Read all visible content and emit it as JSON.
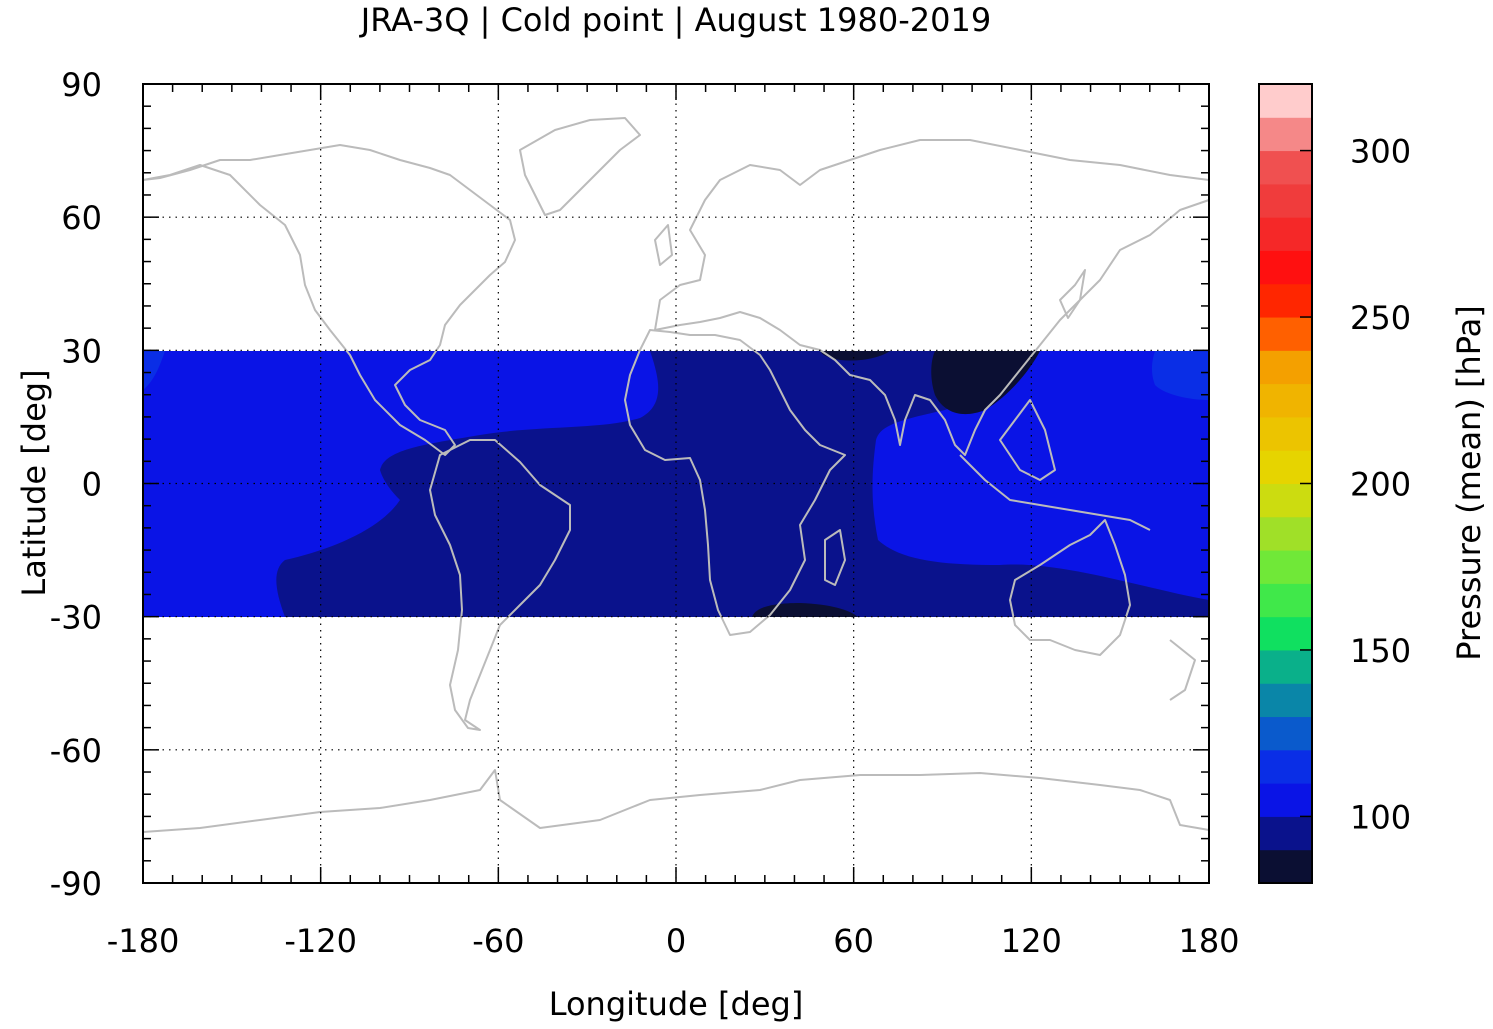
{
  "chart_data": {
    "type": "heatmap",
    "title": "JRA-3Q | Cold point | August 1980-2019",
    "xlabel": "Longitude [deg]",
    "ylabel": "Latitude [deg]",
    "xlim": [
      -180,
      180
    ],
    "ylim": [
      -90,
      90
    ],
    "x_ticks": [
      -180,
      -120,
      -60,
      0,
      60,
      120,
      180
    ],
    "y_ticks": [
      90,
      60,
      30,
      0,
      -30,
      -60,
      -90
    ],
    "x_tick_labels": [
      "-180",
      "-120",
      "-60",
      "0",
      "60",
      "120",
      "180"
    ],
    "y_tick_labels": [
      "90",
      "60",
      "30",
      "0",
      "-30",
      "-60",
      "-90"
    ],
    "grid": true,
    "data_lat_range": [
      -30,
      30
    ],
    "colorbar": {
      "label": "Pressure (mean) [hPa]",
      "range": [
        80,
        320
      ],
      "step": 10,
      "ticks": [
        100,
        150,
        200,
        250,
        300
      ],
      "tick_labels": [
        "100",
        "150",
        "200",
        "250",
        "300"
      ],
      "colors": [
        "#0b0f33",
        "#0a128c",
        "#0a14e6",
        "#0a2ee6",
        "#0a5acc",
        "#0a86a8",
        "#0ab08a",
        "#10e060",
        "#40e84a",
        "#70e838",
        "#a0e028",
        "#ccdc10",
        "#e6d400",
        "#ecc400",
        "#f0b400",
        "#f4a000",
        "#ff6000",
        "#ff2600",
        "#ff1010",
        "#f52828",
        "#f03c3c",
        "#f05050",
        "#f58888",
        "#ffcccc"
      ]
    },
    "regions": [
      {
        "name": "background ~100-110 hPa",
        "value": 105
      },
      {
        "name": "tropical core ~90-100 hPa",
        "value": 95
      },
      {
        "name": "local minima ~80-90 hPa",
        "value": 85
      }
    ],
    "colors": {
      "coastline": "#bbbbbb",
      "background_fill": "#0a14e6",
      "core_fill": "#0a128c",
      "min_fill": "#0b0f33",
      "light_fill": "#0a2ee6"
    }
  }
}
